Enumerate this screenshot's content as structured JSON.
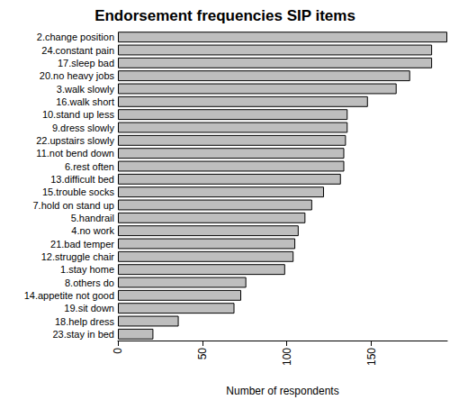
{
  "chart_data": {
    "type": "bar",
    "orientation": "horizontal",
    "title": "Endorsement frequencies SIP items",
    "x_label": "Number of respondents",
    "categories": [
      "2.change position",
      "24.constant pain",
      "17.sleep bad",
      "20.no heavy jobs",
      "3.walk slowly",
      "16.walk short",
      "10.stand up less",
      "9.dress slowly",
      "22.upstairs slowly",
      "11.not bend down",
      "6.rest often",
      "13.difficult bed",
      "15.trouble socks",
      "7.hold on stand up",
      "5.handrail",
      "4.no work",
      "21.bad temper",
      "12.struggle chair",
      "1.stay home",
      "8.others do",
      "14.appetite not good",
      "19.sit down",
      "18.help dress",
      "23.stay in bed"
    ],
    "values": [
      195,
      186,
      186,
      173,
      165,
      148,
      136,
      136,
      135,
      134,
      134,
      132,
      122,
      115,
      111,
      107,
      105,
      104,
      99,
      76,
      73,
      69,
      36,
      21
    ],
    "color": "#bebebe",
    "xlim": [
      0,
      195
    ],
    "xticks": [
      0,
      50,
      100,
      150
    ],
    "grid": false
  }
}
